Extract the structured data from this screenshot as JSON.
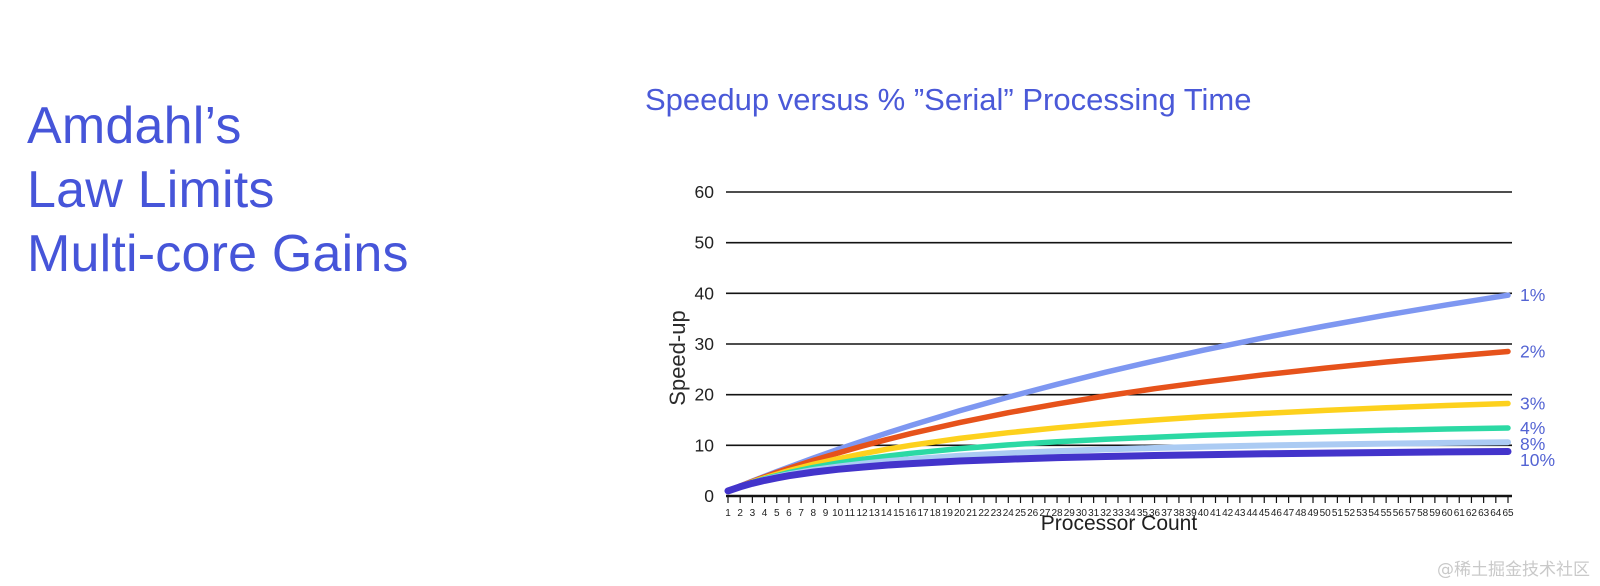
{
  "page": {
    "background": "#ffffff",
    "accent_blue": "#4655d9",
    "watermark": "@稀土掘金技术社区"
  },
  "heading": {
    "color": "#4655d9",
    "lines": [
      "Amdahl’s",
      "Law Limits",
      "Multi-core Gains"
    ]
  },
  "chart_data": {
    "type": "line",
    "title": "Speedup versus % ”Serial” Processing Time",
    "title_color": "#4a59d8",
    "xlabel": "Processor Count",
    "ylabel": "Speed-up",
    "xlim": [
      1,
      65
    ],
    "ylim": [
      0,
      60
    ],
    "y_ticks": [
      0,
      10,
      20,
      30,
      40,
      50,
      60
    ],
    "x_ticks": [
      1,
      2,
      3,
      4,
      5,
      6,
      7,
      8,
      9,
      10,
      11,
      12,
      13,
      14,
      15,
      16,
      17,
      18,
      19,
      20,
      21,
      22,
      23,
      24,
      25,
      26,
      27,
      28,
      29,
      30,
      31,
      32,
      33,
      34,
      35,
      36,
      37,
      38,
      39,
      40,
      41,
      42,
      43,
      44,
      45,
      46,
      47,
      48,
      49,
      50,
      51,
      52,
      53,
      54,
      55,
      56,
      57,
      58,
      59,
      60,
      61,
      62,
      63,
      64,
      65
    ],
    "grid": "horizontal",
    "grid_color": "#131313",
    "axis_color": "#131313",
    "tick_label_color": "#222222",
    "series_label_color": "#5363d3",
    "legend_position": "right-of-line-ends",
    "x": [
      1,
      2,
      3,
      4,
      5,
      6,
      8,
      10,
      12,
      14,
      16,
      20,
      24,
      28,
      32,
      36,
      40,
      45,
      50,
      55,
      60,
      65
    ],
    "series": [
      {
        "name": "1%",
        "color": "#7e97f1",
        "width": 5.5,
        "values": [
          1,
          1.98,
          2.94,
          3.88,
          4.81,
          5.71,
          7.48,
          9.17,
          10.81,
          12.39,
          13.91,
          16.81,
          19.51,
          22.05,
          24.43,
          26.67,
          28.78,
          31.25,
          33.56,
          35.71,
          37.74,
          39.63
        ]
      },
      {
        "name": "2%",
        "color": "#e6521b",
        "width": 5.5,
        "values": [
          1,
          1.96,
          2.88,
          3.77,
          4.63,
          5.45,
          7.02,
          8.47,
          9.84,
          11.11,
          12.31,
          14.49,
          16.44,
          18.18,
          19.75,
          21.18,
          22.47,
          23.94,
          25.25,
          26.44,
          27.52,
          28.51
        ]
      },
      {
        "name": "3%",
        "color": "#fdd11d",
        "width": 5.5,
        "values": [
          1,
          1.92,
          2.78,
          3.57,
          4.31,
          5,
          6.25,
          7.35,
          8.33,
          9.21,
          10,
          11.36,
          12.5,
          13.46,
          14.29,
          15,
          15.63,
          16.3,
          16.89,
          17.41,
          17.86,
          18.26
        ]
      },
      {
        "name": "4%",
        "color": "#2cd9a4",
        "width": 5.5,
        "values": [
          1,
          1.89,
          2.68,
          3.39,
          4.03,
          4.62,
          5.63,
          6.49,
          7.23,
          7.86,
          8.42,
          9.35,
          10.08,
          10.69,
          11.19,
          11.61,
          11.98,
          12.36,
          12.69,
          12.97,
          13.22,
          13.43
        ]
      },
      {
        "name": "8%",
        "color": "#abcbf3",
        "width": 6,
        "values": [
          1,
          1.85,
          2.59,
          3.23,
          3.79,
          4.29,
          5.13,
          5.81,
          6.38,
          6.86,
          7.27,
          7.94,
          8.45,
          8.86,
          9.2,
          9.47,
          9.71,
          9.96,
          10.16,
          10.34,
          10.49,
          10.62
        ]
      },
      {
        "name": "10%",
        "color": "#4334cb",
        "width": 7,
        "values": [
          1,
          1.82,
          2.5,
          3.08,
          3.57,
          4,
          4.71,
          5.26,
          5.71,
          6.09,
          6.4,
          6.9,
          7.27,
          7.57,
          7.8,
          8,
          8.16,
          8.33,
          8.47,
          8.59,
          8.7,
          8.78
        ]
      }
    ]
  }
}
